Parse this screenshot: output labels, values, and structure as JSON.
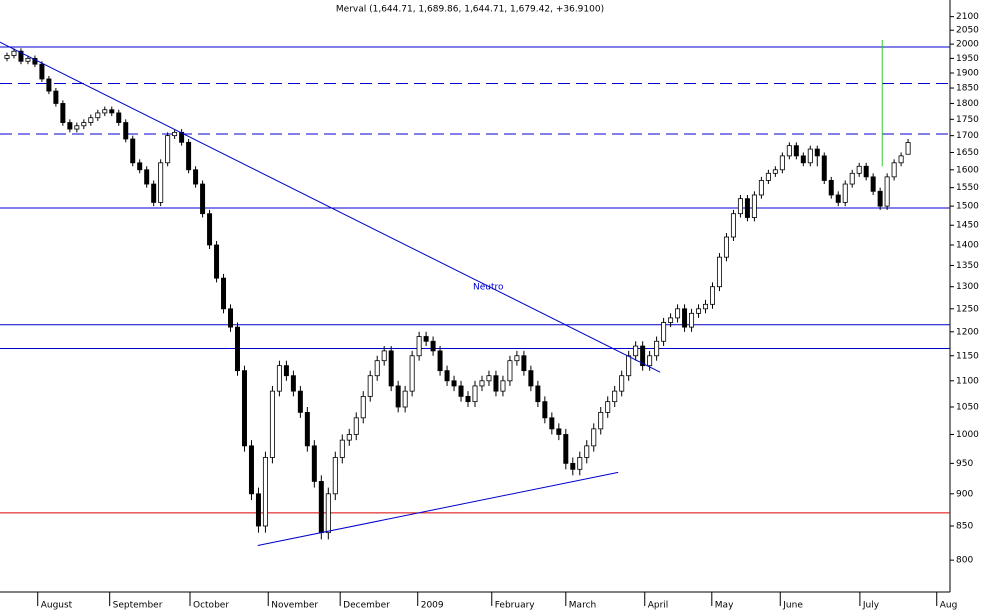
{
  "chart_data": {
    "type": "candlestick",
    "title": "Merval (1,644.71, 1,689.86, 1,644.71, 1,679.42, +36.9100)",
    "log_scale": true,
    "xlim": [
      -1,
      135
    ],
    "ylim": [
      756,
      2163
    ],
    "yticks": [
      800,
      850,
      900,
      950,
      1000,
      1050,
      1100,
      1150,
      1200,
      1250,
      1300,
      1350,
      1400,
      1450,
      1500,
      1550,
      1600,
      1650,
      1700,
      1750,
      1800,
      1850,
      1900,
      1950,
      2000,
      2050,
      2100
    ],
    "xticks": [
      {
        "value": 4.4,
        "label": "August"
      },
      {
        "value": 14.7,
        "label": "September"
      },
      {
        "value": 26.2,
        "label": "October"
      },
      {
        "value": 37.4,
        "label": "November"
      },
      {
        "value": 47.7,
        "label": "December"
      },
      {
        "value": 58.8,
        "label": "2009"
      },
      {
        "value": 69.4,
        "label": "February"
      },
      {
        "value": 80,
        "label": "March"
      },
      {
        "value": 91.3,
        "label": "April"
      },
      {
        "value": 100.9,
        "label": "May"
      },
      {
        "value": 110.7,
        "label": "June"
      },
      {
        "value": 122.1,
        "label": "July"
      },
      {
        "value": 133.1,
        "label": "Aug"
      }
    ],
    "up_color": "#ffffff",
    "down_color": "#000000",
    "open": [
      1950,
      1960,
      1975,
      1940,
      1950,
      1930,
      1880,
      1840,
      1800,
      1740,
      1720,
      1730,
      1740,
      1755,
      1770,
      1780,
      1770,
      1740,
      1690,
      1620,
      1600,
      1560,
      1510,
      1620,
      1700,
      1710,
      1680,
      1600,
      1560,
      1480,
      1400,
      1320,
      1250,
      1210,
      1120,
      980,
      900,
      850,
      960,
      1080,
      1130,
      1110,
      1080,
      1040,
      980,
      920,
      840,
      900,
      960,
      990,
      1000,
      1030,
      1070,
      1110,
      1140,
      1160,
      1090,
      1050,
      1080,
      1150,
      1190,
      1180,
      1160,
      1120,
      1100,
      1090,
      1070,
      1060,
      1090,
      1100,
      1110,
      1080,
      1100,
      1140,
      1150,
      1120,
      1090,
      1060,
      1030,
      1010,
      1000,
      950,
      940,
      960,
      980,
      1010,
      1040,
      1060,
      1080,
      1110,
      1150,
      1170,
      1130,
      1150,
      1180,
      1220,
      1230,
      1250,
      1210,
      1240,
      1250,
      1260,
      1300,
      1370,
      1420,
      1480,
      1520,
      1470,
      1530,
      1570,
      1590,
      1600,
      1640,
      1670,
      1640,
      1620,
      1660,
      1640,
      1570,
      1530,
      1510,
      1560,
      1590,
      1610,
      1580,
      1540,
      1500,
      1580,
      1620,
      1644.71
    ],
    "high": [
      1970,
      1985,
      1985,
      1960,
      1960,
      1940,
      1890,
      1850,
      1810,
      1750,
      1740,
      1750,
      1765,
      1780,
      1790,
      1790,
      1780,
      1750,
      1700,
      1630,
      1610,
      1570,
      1630,
      1710,
      1720,
      1720,
      1690,
      1610,
      1570,
      1490,
      1410,
      1330,
      1260,
      1220,
      1130,
      990,
      910,
      970,
      1090,
      1140,
      1140,
      1120,
      1090,
      1050,
      990,
      930,
      910,
      970,
      1000,
      1010,
      1040,
      1080,
      1120,
      1150,
      1170,
      1170,
      1100,
      1090,
      1160,
      1200,
      1200,
      1190,
      1170,
      1130,
      1110,
      1100,
      1080,
      1100,
      1110,
      1120,
      1120,
      1110,
      1150,
      1160,
      1160,
      1130,
      1100,
      1070,
      1040,
      1020,
      1010,
      960,
      970,
      990,
      1020,
      1050,
      1070,
      1090,
      1120,
      1160,
      1180,
      1180,
      1160,
      1190,
      1230,
      1240,
      1260,
      1260,
      1250,
      1260,
      1270,
      1310,
      1380,
      1430,
      1490,
      1530,
      1530,
      1540,
      1580,
      1600,
      1610,
      1650,
      1680,
      1680,
      1650,
      1670,
      1670,
      1650,
      1580,
      1540,
      1570,
      1600,
      1620,
      1620,
      1590,
      1550,
      1590,
      1630,
      1650,
      1689.86
    ],
    "low": [
      1940,
      1950,
      1930,
      1930,
      1920,
      1870,
      1830,
      1790,
      1730,
      1710,
      1710,
      1720,
      1730,
      1745,
      1760,
      1760,
      1730,
      1680,
      1610,
      1590,
      1550,
      1500,
      1500,
      1610,
      1690,
      1670,
      1590,
      1550,
      1470,
      1390,
      1310,
      1240,
      1200,
      1110,
      970,
      890,
      840,
      840,
      950,
      1070,
      1100,
      1070,
      1030,
      970,
      910,
      830,
      830,
      890,
      950,
      980,
      990,
      1020,
      1060,
      1100,
      1130,
      1080,
      1040,
      1040,
      1070,
      1140,
      1170,
      1150,
      1110,
      1090,
      1080,
      1060,
      1050,
      1050,
      1080,
      1090,
      1070,
      1070,
      1090,
      1130,
      1110,
      1080,
      1050,
      1020,
      1000,
      990,
      940,
      930,
      930,
      950,
      970,
      1000,
      1030,
      1050,
      1070,
      1100,
      1140,
      1120,
      1120,
      1140,
      1170,
      1210,
      1220,
      1200,
      1200,
      1230,
      1240,
      1250,
      1290,
      1360,
      1410,
      1470,
      1460,
      1460,
      1520,
      1560,
      1580,
      1590,
      1630,
      1630,
      1610,
      1610,
      1610,
      1560,
      1520,
      1500,
      1500,
      1550,
      1580,
      1570,
      1530,
      1490,
      1490,
      1570,
      1610,
      1644.71
    ],
    "close": [
      1960,
      1975,
      1940,
      1950,
      1930,
      1880,
      1840,
      1800,
      1740,
      1720,
      1730,
      1740,
      1755,
      1770,
      1780,
      1770,
      1740,
      1690,
      1620,
      1600,
      1560,
      1510,
      1620,
      1700,
      1710,
      1680,
      1600,
      1560,
      1480,
      1400,
      1320,
      1250,
      1210,
      1120,
      980,
      900,
      850,
      960,
      1080,
      1130,
      1110,
      1080,
      1040,
      980,
      920,
      840,
      900,
      960,
      990,
      1000,
      1030,
      1070,
      1110,
      1140,
      1160,
      1090,
      1050,
      1080,
      1150,
      1190,
      1180,
      1160,
      1120,
      1100,
      1090,
      1070,
      1060,
      1090,
      1100,
      1110,
      1080,
      1100,
      1140,
      1150,
      1120,
      1090,
      1060,
      1030,
      1010,
      1000,
      950,
      940,
      960,
      980,
      1010,
      1040,
      1060,
      1080,
      1110,
      1150,
      1170,
      1130,
      1150,
      1180,
      1220,
      1230,
      1250,
      1210,
      1240,
      1250,
      1260,
      1300,
      1370,
      1420,
      1480,
      1520,
      1470,
      1530,
      1570,
      1590,
      1600,
      1640,
      1670,
      1640,
      1620,
      1660,
      1640,
      1570,
      1530,
      1510,
      1560,
      1590,
      1610,
      1580,
      1540,
      1500,
      1580,
      1620,
      1640,
      1679.42
    ],
    "levels": [
      {
        "value": 1990,
        "dashed": false,
        "color": "#0000cc"
      },
      {
        "value": 1865,
        "dashed": true,
        "color": "#0000cc"
      },
      {
        "value": 1705,
        "dashed": true,
        "color": "#0000cc"
      },
      {
        "value": 1495,
        "dashed": false,
        "color": "#0000cc"
      },
      {
        "value": 1215,
        "dashed": false,
        "color": "#0000cc"
      },
      {
        "value": 1165,
        "dashed": false,
        "color": "#0000cc"
      },
      {
        "value": 870,
        "dashed": false,
        "color": "#dd0000"
      }
    ],
    "trendlines": [
      {
        "x": [
          -1,
          93.5
        ],
        "y": [
          2007,
          1117
        ],
        "color": "#0000cc"
      },
      {
        "x": [
          35.9,
          87.5
        ],
        "y": [
          821,
          935
        ],
        "color": "#0000cc"
      },
      {
        "x": [
          125.3,
          125.3
        ],
        "y": [
          2015,
          1610
        ],
        "color": "#33cc33"
      }
    ],
    "annotation": {
      "text": "Neutro",
      "x": 68.9,
      "y": 1299,
      "color": "#0000cc"
    }
  }
}
